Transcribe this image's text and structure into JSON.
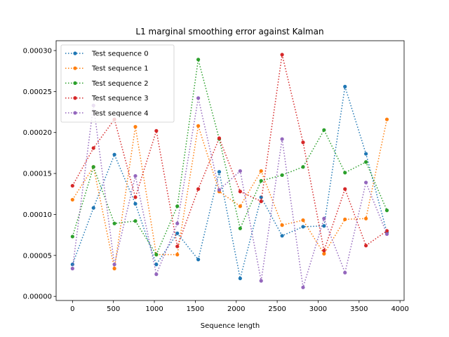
{
  "chart_data": {
    "type": "line",
    "title": "L1 marginal smoothing error against Kalman",
    "xlabel": "Sequence length",
    "ylabel": "",
    "x": [
      0,
      256,
      512,
      768,
      1024,
      1280,
      1536,
      1792,
      2048,
      2304,
      2560,
      2816,
      3072,
      3328,
      3584,
      3840
    ],
    "xlim": [
      -200,
      4050
    ],
    "ylim": [
      -5e-06,
      0.000312
    ],
    "x_ticks": [
      "0",
      "500",
      "1000",
      "1500",
      "2000",
      "2500",
      "3000",
      "3500",
      "4000"
    ],
    "x_tick_values": [
      0,
      500,
      1000,
      1500,
      2000,
      2500,
      3000,
      3500,
      4000
    ],
    "y_ticks": [
      "0.00000",
      "0.00005",
      "0.00010",
      "0.00015",
      "0.00020",
      "0.00025",
      "0.00030"
    ],
    "y_tick_values": [
      0,
      5e-05,
      0.0001,
      0.00015,
      0.0002,
      0.00025,
      0.0003
    ],
    "legend_position": "top-left",
    "series": [
      {
        "name": "Test sequence 0",
        "color": "#1f77b4",
        "values": [
          3.9e-05,
          0.000108,
          0.000173,
          0.000113,
          3.9e-05,
          7.7e-05,
          4.5e-05,
          0.000152,
          2.2e-05,
          0.000121,
          7.4e-05,
          8.5e-05,
          8.6e-05,
          0.000256,
          0.000174,
          7.8e-05
        ]
      },
      {
        "name": "Test sequence 1",
        "color": "#ff7f0e",
        "values": [
          0.000118,
          0.000158,
          3.4e-05,
          0.000207,
          5.1e-05,
          5.1e-05,
          0.000208,
          0.000128,
          0.00011,
          0.000153,
          8.7e-05,
          9.3e-05,
          5.2e-05,
          9.4e-05,
          9.5e-05,
          0.000216
        ]
      },
      {
        "name": "Test sequence 2",
        "color": "#2ca02c",
        "values": [
          7.3e-05,
          0.000158,
          8.9e-05,
          9.2e-05,
          5.1e-05,
          0.00011,
          0.000289,
          0.000192,
          8.3e-05,
          0.000141,
          0.000148,
          0.000158,
          0.000203,
          0.000151,
          0.000164,
          0.000105
        ]
      },
      {
        "name": "Test sequence 3",
        "color": "#d62728",
        "values": [
          0.000135,
          0.000181,
          0.000216,
          0.000121,
          0.000202,
          6.1e-05,
          0.000131,
          0.000193,
          0.000128,
          0.000116,
          0.000295,
          0.000188,
          5.6e-05,
          0.000131,
          6.2e-05,
          8e-05
        ]
      },
      {
        "name": "Test sequence 4",
        "color": "#9467bd",
        "values": [
          3.4e-05,
          0.000233,
          3.9e-05,
          0.000147,
          2.7e-05,
          8.9e-05,
          0.000242,
          0.00013,
          0.000153,
          1.9e-05,
          0.000192,
          1.1e-05,
          9.5e-05,
          2.9e-05,
          0.000139,
          7.6e-05
        ]
      }
    ]
  }
}
